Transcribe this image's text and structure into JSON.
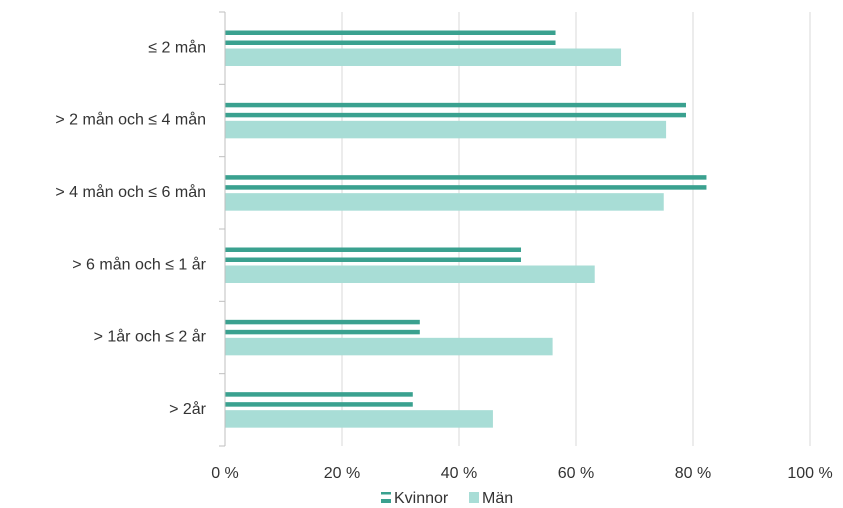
{
  "chart_data": {
    "type": "bar",
    "orientation": "horizontal",
    "categories": [
      "≤ 2 mån",
      "> 2 mån och ≤ 4 mån",
      "> 4 mån och ≤ 6 mån",
      "> 6 mån och ≤ 1 år",
      "> 1år och ≤ 2 år",
      "> 2år"
    ],
    "series": [
      {
        "name": "Kvinnor",
        "values": [
          56.5,
          78.8,
          82.3,
          50.6,
          33.3,
          32.1
        ],
        "color": "#3aa18f",
        "style": "double-line"
      },
      {
        "name": "Män",
        "values": [
          67.7,
          75.4,
          75.0,
          63.2,
          56.0,
          45.8
        ],
        "color": "#a8ddd6",
        "style": "solid"
      }
    ],
    "xlim": [
      0,
      100
    ],
    "xticks": [
      "0 %",
      "20 %",
      "40 %",
      "60 %",
      "80 %",
      "100 %"
    ],
    "grid": true,
    "legend_position": "bottom"
  }
}
